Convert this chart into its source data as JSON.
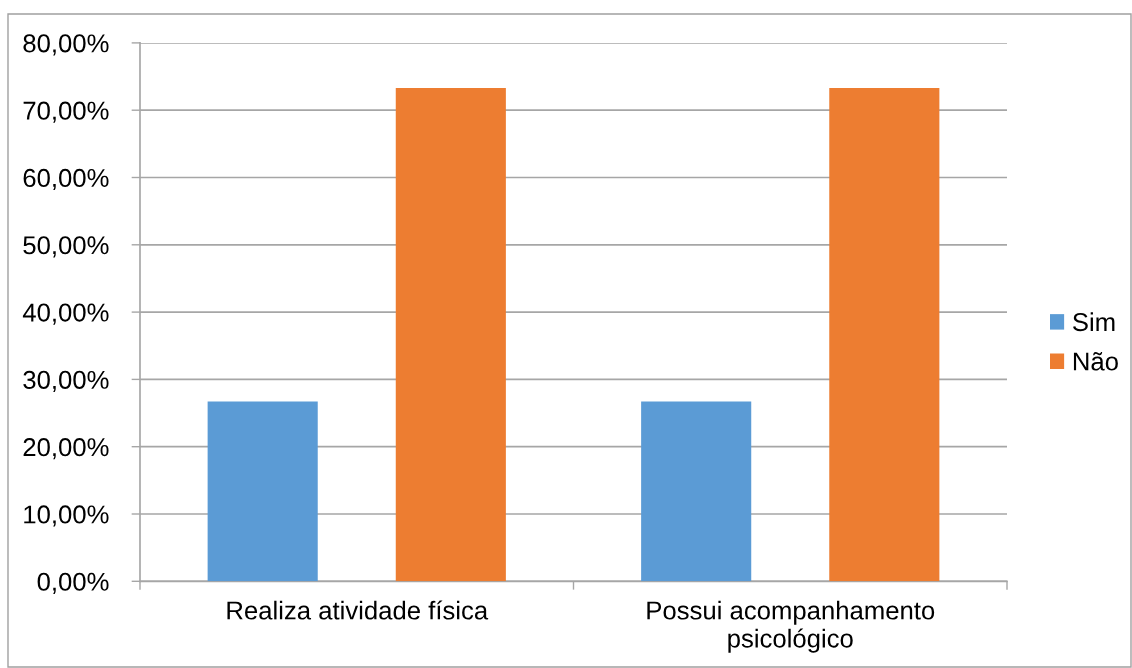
{
  "chart_data": {
    "type": "bar",
    "categories": [
      "Realiza atividade física",
      "Possui acompanhamento psicológico"
    ],
    "series": [
      {
        "name": "Sim",
        "color": "#5b9bd5",
        "values": [
          26.7,
          26.7
        ]
      },
      {
        "name": "Não",
        "color": "#ed7d31",
        "values": [
          73.3,
          73.3
        ]
      }
    ],
    "ylim": [
      0,
      80
    ],
    "yticks": [
      {
        "value": 0,
        "label": "0,00%"
      },
      {
        "value": 10,
        "label": "10,00%"
      },
      {
        "value": 20,
        "label": "20,00%"
      },
      {
        "value": 30,
        "label": "30,00%"
      },
      {
        "value": 40,
        "label": "40,00%"
      },
      {
        "value": 50,
        "label": "50,00%"
      },
      {
        "value": 60,
        "label": "60,00%"
      },
      {
        "value": 70,
        "label": "70,00%"
      },
      {
        "value": 80,
        "label": "80,00%"
      }
    ],
    "grid": "y",
    "legend": "right"
  }
}
